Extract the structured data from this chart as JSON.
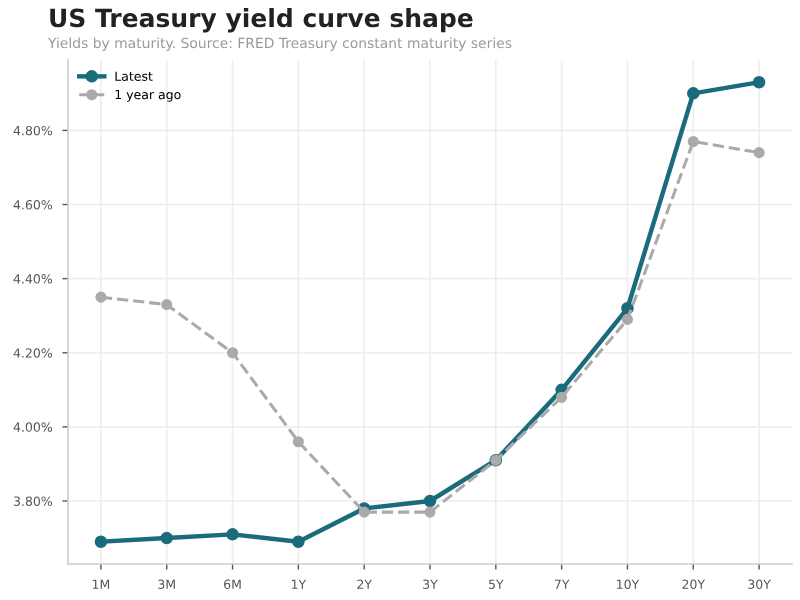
{
  "chart_data": {
    "type": "line",
    "title": "US Treasury yield curve shape",
    "subtitle": "Yields by maturity. Source: FRED Treasury constant maturity series",
    "categories": [
      "1M",
      "3M",
      "6M",
      "1Y",
      "2Y",
      "3Y",
      "5Y",
      "7Y",
      "10Y",
      "20Y",
      "30Y"
    ],
    "series": [
      {
        "name": "Latest",
        "color": "#1a6b7c",
        "line_style": "solid",
        "values": [
          3.69,
          3.7,
          3.71,
          3.69,
          3.78,
          3.8,
          3.91,
          4.1,
          4.32,
          4.9,
          4.93
        ]
      },
      {
        "name": "1 year ago",
        "color": "#aaaaaa",
        "line_style": "dashed",
        "values": [
          4.35,
          4.33,
          4.2,
          3.96,
          3.77,
          3.77,
          3.91,
          4.08,
          4.29,
          4.77,
          4.74
        ]
      }
    ],
    "ylim": [
      3.63,
      4.99
    ],
    "yticks": [
      {
        "value": 3.8,
        "label": "3.80%"
      },
      {
        "value": 4.0,
        "label": "4.00%"
      },
      {
        "value": 4.2,
        "label": "4.20%"
      },
      {
        "value": 4.4,
        "label": "4.40%"
      },
      {
        "value": 4.6,
        "label": "4.60%"
      },
      {
        "value": 4.8,
        "label": "4.80%"
      }
    ],
    "grid": true,
    "legend": "top left",
    "marker": "circle"
  }
}
